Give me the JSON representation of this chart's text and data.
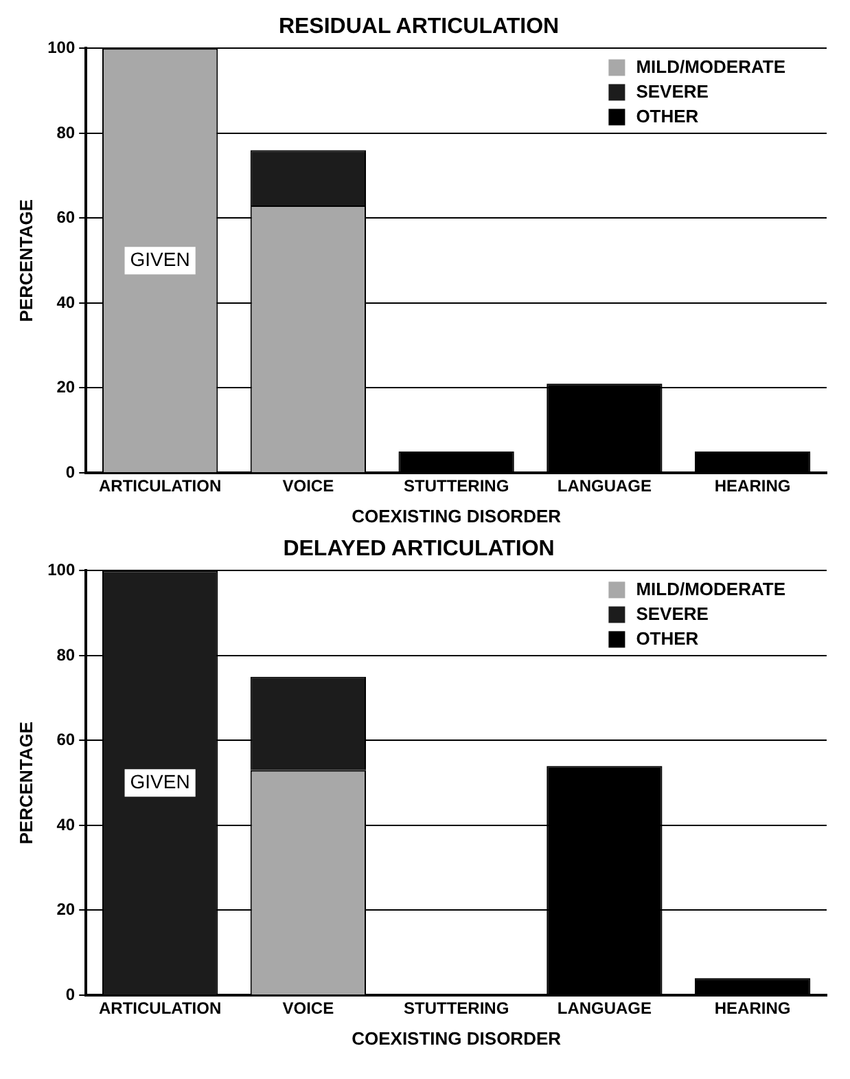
{
  "chart_data": [
    {
      "type": "bar",
      "title": "RESIDUAL ARTICULATION",
      "xlabel": "COEXISTING DISORDER",
      "ylabel": "PERCENTAGE",
      "categories": [
        "ARTICULATION",
        "VOICE",
        "STUTTERING",
        "LANGUAGE",
        "HEARING"
      ],
      "stacked": true,
      "series": [
        {
          "name": "MILD/MODERATE",
          "color": "#a8a8a8",
          "values": [
            100,
            63,
            0,
            0,
            0
          ]
        },
        {
          "name": "SEVERE",
          "color": "#1c1c1c",
          "values": [
            0,
            13,
            0,
            0,
            0
          ]
        },
        {
          "name": "OTHER",
          "color": "#000000",
          "values": [
            0,
            0,
            5,
            21,
            5
          ]
        }
      ],
      "ylim": [
        0,
        100
      ],
      "yticks": [
        0,
        20,
        40,
        60,
        80,
        100
      ],
      "grid": "y",
      "legend": "top right",
      "annotations": [
        "GIVEN"
      ]
    },
    {
      "type": "bar",
      "title": "DELAYED ARTICULATION",
      "xlabel": "COEXISTING DISORDER",
      "ylabel": "PERCENTAGE",
      "categories": [
        "ARTICULATION",
        "VOICE",
        "STUTTERING",
        "LANGUAGE",
        "HEARING"
      ],
      "stacked": true,
      "series": [
        {
          "name": "MILD/MODERATE",
          "color": "#a8a8a8",
          "values": [
            0,
            53,
            0,
            0,
            0
          ]
        },
        {
          "name": "SEVERE",
          "color": "#1c1c1c",
          "values": [
            100,
            22,
            0,
            0,
            0
          ]
        },
        {
          "name": "OTHER",
          "color": "#000000",
          "values": [
            0,
            0,
            0,
            54,
            4
          ]
        }
      ],
      "ylim": [
        0,
        100
      ],
      "yticks": [
        0,
        20,
        40,
        60,
        80,
        100
      ],
      "grid": "y",
      "legend": "top right",
      "annotations": [
        "GIVEN"
      ]
    }
  ]
}
